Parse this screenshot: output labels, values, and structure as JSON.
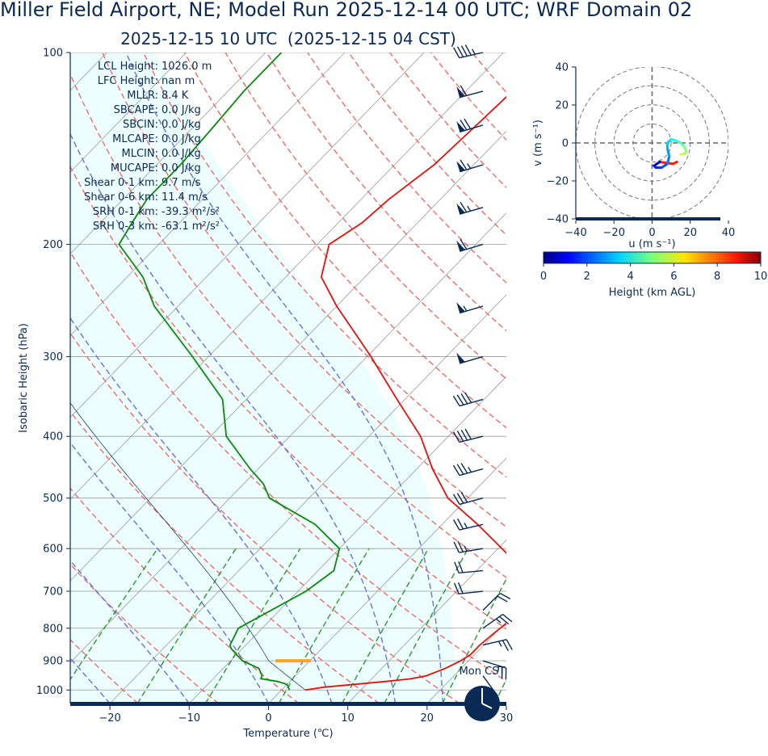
{
  "title": "Miller Field Airport, NE; Model Run 2025-12-14 00 UTC; WRF Domain 02",
  "subtitle": "2025-12-15 10 UTC  (2025-12-15 04 CST)",
  "colors": {
    "text": "#0a2a55",
    "temperature": "#e4120c",
    "dewpoint": "#0a8a0a",
    "dry_adiabat": "#ef6b6b",
    "moist_adiabat": "#6d6de8",
    "mixing_ratio": "#2c9a2c",
    "isotherm": "#9a9a9a",
    "shading": "#ecfefe",
    "lcl_marker": "#f5a623",
    "clock": "#0a2a55"
  },
  "stats": [
    {
      "label": "LCL Height:",
      "value": "1026.0 m"
    },
    {
      "label": "LFC Height:",
      "value": "nan m"
    },
    {
      "label": "MLLR:",
      "value": "8.4 K"
    },
    {
      "label": "SBCAPE:",
      "value": "0.0 J/kg"
    },
    {
      "label": "SBCIN:",
      "value": "0.0 J/kg"
    },
    {
      "label": "MLCAPE:",
      "value": "0.0 J/kg"
    },
    {
      "label": "MLCIN:",
      "value": "0.0 J/kg"
    },
    {
      "label": "MUCAPE:",
      "value": "0.0 J/kg"
    },
    {
      "label": "Shear 0-1 km:",
      "value": "9.7 m/s"
    },
    {
      "label": "Shear 0-6 km:",
      "value": "11.4 m/s"
    },
    {
      "label": "SRH 0-1 km:",
      "value": "-39.3 m²/s²"
    },
    {
      "label": "SRH 0-3 km:",
      "value": "-63.1 m²/s²"
    }
  ],
  "clock_label": "Mon CST",
  "chart_data": [
    {
      "type": "line",
      "subtype": "skew-t",
      "xlabel": "Temperature (℃)",
      "ylabel": "Isobaric Height (hPa)",
      "xlim": [
        -25,
        30
      ],
      "ylim_hpa": [
        1050,
        100
      ],
      "x_ticks": [
        -20,
        -10,
        0,
        10,
        20,
        30
      ],
      "y_ticks": [
        100,
        200,
        300,
        400,
        500,
        600,
        700,
        800,
        900,
        1000
      ],
      "y_scale": "log",
      "grid": true,
      "series": [
        {
          "name": "temperature",
          "points": [
            [
              1000,
              3.0
            ],
            [
              990,
              5.0
            ],
            [
              970,
              12.0
            ],
            [
              960,
              15.0
            ],
            [
              950,
              16.5
            ],
            [
              925,
              18.0
            ],
            [
              900,
              19.0
            ],
            [
              880,
              19.5
            ],
            [
              850,
              19.5
            ],
            [
              800,
              20.0
            ],
            [
              775,
              20.5
            ],
            [
              750,
              21.0
            ],
            [
              720,
              20.5
            ],
            [
              700,
              19.5
            ],
            [
              650,
              16.0
            ],
            [
              600,
              10.5
            ],
            [
              550,
              4.5
            ],
            [
              500,
              -2.5
            ],
            [
              450,
              -8.0
            ],
            [
              400,
              -13.5
            ],
            [
              350,
              -21.0
            ],
            [
              300,
              -29.5
            ],
            [
              275,
              -34.5
            ],
            [
              250,
              -40.0
            ],
            [
              225,
              -45.5
            ],
            [
              200,
              -48.5
            ],
            [
              185,
              -47.0
            ],
            [
              170,
              -46.5
            ],
            [
              150,
              -45.0
            ],
            [
              130,
              -44.5
            ],
            [
              110,
              -44.0
            ],
            [
              100,
              -44.0
            ]
          ]
        },
        {
          "name": "dewpoint",
          "points": [
            [
              1000,
              1.0
            ],
            [
              980,
              0.0
            ],
            [
              970,
              -1.5
            ],
            [
              960,
              -4.0
            ],
            [
              950,
              -4.2
            ],
            [
              925,
              -5.5
            ],
            [
              900,
              -8.5
            ],
            [
              880,
              -10.0
            ],
            [
              860,
              -11.5
            ],
            [
              850,
              -12.0
            ],
            [
              800,
              -13.0
            ],
            [
              700,
              -9.0
            ],
            [
              650,
              -8.0
            ],
            [
              600,
              -10.0
            ],
            [
              550,
              -16.0
            ],
            [
              500,
              -25.0
            ],
            [
              475,
              -27.5
            ],
            [
              450,
              -31.0
            ],
            [
              400,
              -38.0
            ],
            [
              350,
              -43.0
            ],
            [
              300,
              -52.0
            ],
            [
              250,
              -63.0
            ],
            [
              225,
              -68.0
            ],
            [
              200,
              -75.0
            ],
            [
              185,
              -76.0
            ],
            [
              170,
              -77.0
            ],
            [
              150,
              -77.0
            ],
            [
              130,
              -77.5
            ],
            [
              115,
              -78.0
            ],
            [
              100,
              -78.0
            ]
          ]
        }
      ],
      "lcl_hpa": 900,
      "wind_barbs": [
        {
          "p": 1000,
          "u": 0.5,
          "v": 10
        },
        {
          "p": 950,
          "u": -8,
          "v": 11
        },
        {
          "p": 900,
          "u": -13,
          "v": 4
        },
        {
          "p": 850,
          "u": -13,
          "v": -3
        },
        {
          "p": 800,
          "u": -10,
          "v": -7
        },
        {
          "p": 750,
          "u": -8,
          "v": -8
        },
        {
          "p": 700,
          "u": 9,
          "v": 1
        },
        {
          "p": 650,
          "u": 11,
          "v": 1
        },
        {
          "p": 600,
          "u": 12,
          "v": 2
        },
        {
          "p": 550,
          "u": 13,
          "v": 3
        },
        {
          "p": 500,
          "u": 15,
          "v": 4
        },
        {
          "p": 450,
          "u": 18,
          "v": 5
        },
        {
          "p": 400,
          "u": 20,
          "v": 5
        },
        {
          "p": 350,
          "u": 21,
          "v": 6
        },
        {
          "p": 300,
          "u": 24,
          "v": 7
        },
        {
          "p": 250,
          "u": 27,
          "v": 8
        },
        {
          "p": 200,
          "u": 30,
          "v": 9
        },
        {
          "p": 175,
          "u": 31,
          "v": 9
        },
        {
          "p": 150,
          "u": 33,
          "v": 10
        },
        {
          "p": 130,
          "u": 34,
          "v": 10
        },
        {
          "p": 115,
          "u": 30,
          "v": 8
        },
        {
          "p": 100,
          "u": 22,
          "v": 5
        }
      ]
    },
    {
      "type": "line",
      "subtype": "hodograph",
      "xlabel": "u (m s⁻¹)",
      "ylabel": "v (m s⁻¹)",
      "xlim": [
        -40,
        40
      ],
      "ylim": [
        -40,
        40
      ],
      "x_ticks": [
        -40,
        -20,
        0,
        20,
        40
      ],
      "y_ticks": [
        -40,
        -20,
        0,
        20,
        40
      ],
      "ring_radii": [
        10,
        20,
        30,
        40
      ],
      "colorbar": {
        "label": "Height (km AGL)",
        "range": [
          0,
          10
        ],
        "ticks": [
          0,
          2,
          4,
          6,
          8,
          10
        ]
      },
      "points": [
        {
          "h": 0.0,
          "u": 13,
          "v": -10
        },
        {
          "h": 0.3,
          "u": 11,
          "v": -11
        },
        {
          "h": 0.6,
          "u": 4,
          "v": -10
        },
        {
          "h": 0.9,
          "u": 1,
          "v": -12
        },
        {
          "h": 1.2,
          "u": 2,
          "v": -13
        },
        {
          "h": 1.6,
          "u": 5,
          "v": -13
        },
        {
          "h": 2.0,
          "u": 8,
          "v": -11
        },
        {
          "h": 2.4,
          "u": 9,
          "v": -7
        },
        {
          "h": 2.7,
          "u": 8,
          "v": -3
        },
        {
          "h": 3.0,
          "u": 8,
          "v": 0
        },
        {
          "h": 3.4,
          "u": 10,
          "v": 2
        },
        {
          "h": 3.8,
          "u": 13,
          "v": 1
        },
        {
          "h": 4.2,
          "u": 15,
          "v": 0
        },
        {
          "h": 4.6,
          "u": 17,
          "v": -2
        },
        {
          "h": 5.0,
          "u": 18,
          "v": -5
        },
        {
          "h": 5.4,
          "u": 16,
          "v": -6
        },
        {
          "h": 6.0,
          "u": 15,
          "v": -6
        }
      ]
    }
  ]
}
